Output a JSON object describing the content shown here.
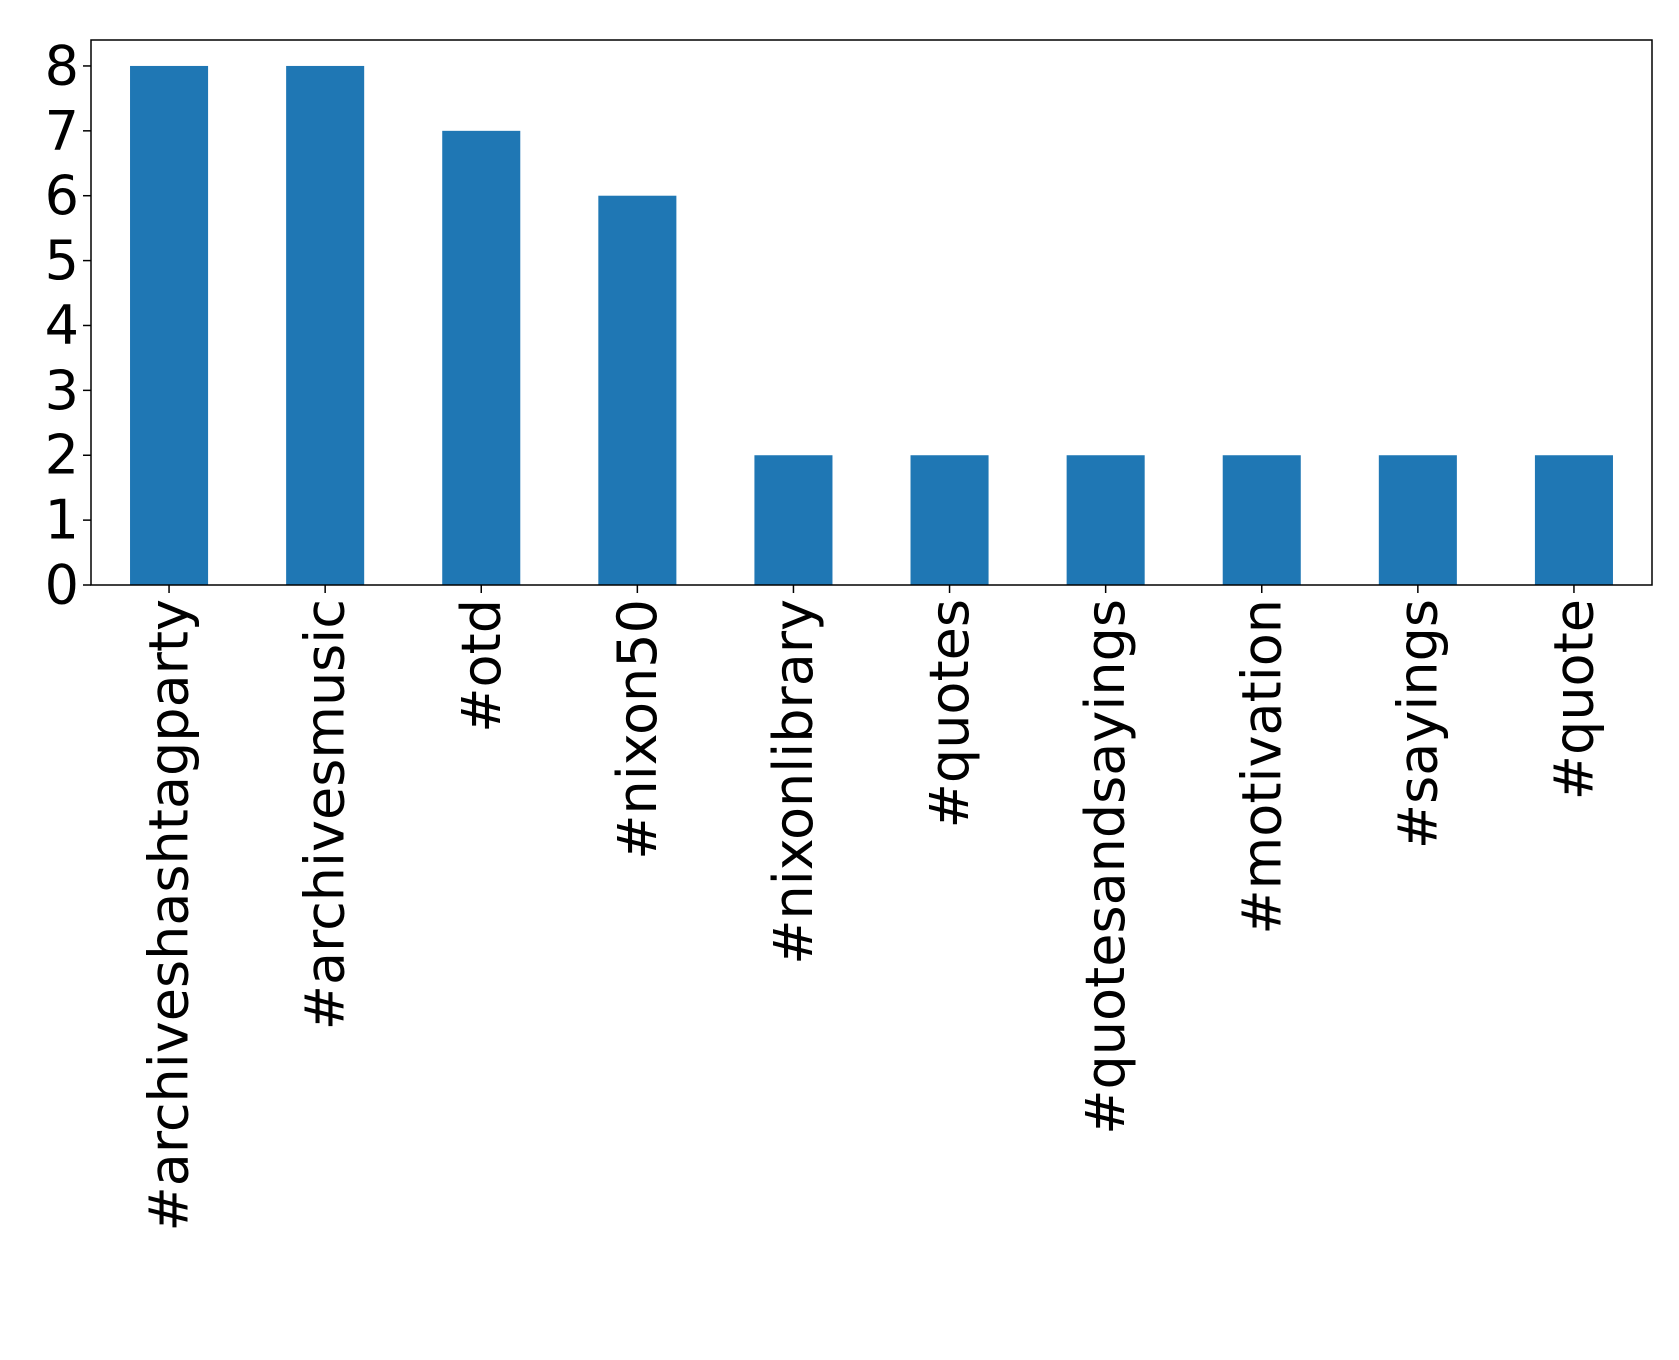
{
  "chart_data": {
    "type": "bar",
    "title": "",
    "xlabel": "",
    "ylabel": "",
    "categories": [
      "#archiveshashtagparty",
      "#archivesmusic",
      "#otd",
      "#nixon50",
      "#nixonlibrary",
      "#quotes",
      "#quotesandsayings",
      "#motivation",
      "#sayings",
      "#quote"
    ],
    "values": [
      8,
      8,
      7,
      6,
      2,
      2,
      2,
      2,
      2,
      2
    ],
    "ylim": [
      0,
      8.4
    ],
    "yticks": [
      "0",
      "1",
      "2",
      "3",
      "4",
      "5",
      "6",
      "7",
      "8"
    ],
    "bar_color": "#1f77b4",
    "grid": false,
    "legend": "none"
  }
}
